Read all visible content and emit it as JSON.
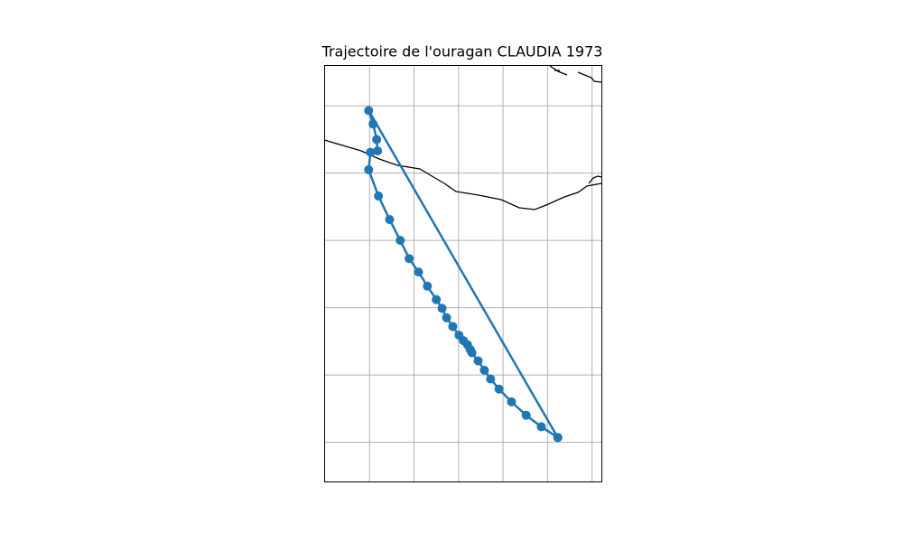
{
  "chart_data": {
    "type": "track",
    "title": "Trajectoire de l'ouragan CLAUDIA 1973",
    "x": [
      -100.77,
      -105.02,
      -104.92,
      -104.84,
      -104.82,
      -104.98,
      -105.02,
      -104.8,
      -104.55,
      -104.31,
      -104.11,
      -103.9,
      -103.7,
      -103.5,
      -103.37,
      -103.27,
      -103.13,
      -102.99,
      -102.89,
      -102.8,
      -102.74,
      -102.7,
      -102.56,
      -102.42,
      -102.28,
      -102.09,
      -101.81,
      -101.48,
      -101.14,
      -100.77
    ],
    "y": [
      17.07,
      21.93,
      21.73,
      21.5,
      21.33,
      21.31,
      21.05,
      20.66,
      20.31,
      20.0,
      19.73,
      19.53,
      19.32,
      19.12,
      18.99,
      18.85,
      18.72,
      18.59,
      18.51,
      18.45,
      18.38,
      18.33,
      18.21,
      18.07,
      17.94,
      17.79,
      17.6,
      17.4,
      17.23,
      17.07
    ],
    "color": "#1f77b4",
    "xlim": [
      -106.01,
      -99.78
    ],
    "ylim": [
      16.41,
      22.6
    ],
    "xticks": [
      -105,
      -104,
      -103,
      -102,
      -101,
      -100
    ],
    "yticks": [
      17,
      18,
      19,
      20,
      21,
      22
    ],
    "grid": true
  }
}
